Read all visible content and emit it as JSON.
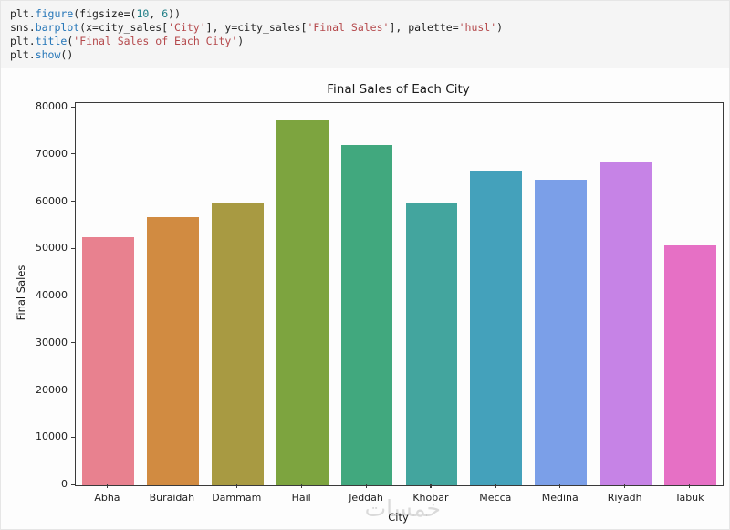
{
  "colors": {
    "plain": "#1f1f1f",
    "func": "#2576b8",
    "number": "#1b7c84",
    "string": "#b5494c",
    "code_bg": "#f5f5f5"
  },
  "code_cell": {
    "lines": [
      {
        "tokens": [
          {
            "text": "plt.",
            "style": "plain"
          },
          {
            "text": "figure",
            "style": "func"
          },
          {
            "text": "(figsize=(",
            "style": "plain"
          },
          {
            "text": "10",
            "style": "number"
          },
          {
            "text": ", ",
            "style": "plain"
          },
          {
            "text": "6",
            "style": "number"
          },
          {
            "text": "))",
            "style": "plain"
          }
        ]
      },
      {
        "tokens": [
          {
            "text": "sns.",
            "style": "plain"
          },
          {
            "text": "barplot",
            "style": "func"
          },
          {
            "text": "(x=city_sales[",
            "style": "plain"
          },
          {
            "text": "'City'",
            "style": "string"
          },
          {
            "text": "], y=city_sales[",
            "style": "plain"
          },
          {
            "text": "'Final Sales'",
            "style": "string"
          },
          {
            "text": "], palette=",
            "style": "plain"
          },
          {
            "text": "'husl'",
            "style": "string"
          },
          {
            "text": ")",
            "style": "plain"
          }
        ]
      },
      {
        "tokens": [
          {
            "text": "plt.",
            "style": "plain"
          },
          {
            "text": "title",
            "style": "func"
          },
          {
            "text": "(",
            "style": "plain"
          },
          {
            "text": "'Final Sales of Each City'",
            "style": "string"
          },
          {
            "text": ")",
            "style": "plain"
          }
        ]
      },
      {
        "tokens": [
          {
            "text": "plt.",
            "style": "plain"
          },
          {
            "text": "show",
            "style": "func"
          },
          {
            "text": "()",
            "style": "plain"
          }
        ]
      }
    ]
  },
  "chart_data": {
    "type": "bar",
    "title": "Final Sales of Each City",
    "xlabel": "City",
    "ylabel": "Final Sales",
    "categories": [
      "Abha",
      "Buraidah",
      "Dammam",
      "Hail",
      "Jeddah",
      "Khobar",
      "Mecca",
      "Medina",
      "Riyadh",
      "Tabuk"
    ],
    "values": [
      52600,
      56900,
      60000,
      77300,
      72100,
      60000,
      66500,
      64700,
      68500,
      50900
    ],
    "bar_colors": [
      "#e8818f",
      "#d18b41",
      "#a89a42",
      "#7da43f",
      "#41a87e",
      "#43a59e",
      "#44a1bb",
      "#7b9fe8",
      "#c683e6",
      "#e670c5"
    ],
    "palette_name": "husl",
    "ylim": [
      0,
      80000
    ],
    "yticks": [
      0,
      10000,
      20000,
      30000,
      40000,
      50000,
      60000,
      70000,
      80000
    ],
    "ytick_labels": [
      "0",
      "10000",
      "20000",
      "30000",
      "40000",
      "50000",
      "60000",
      "70000",
      "80000"
    ],
    "grid": false,
    "legend": null
  },
  "watermark": {
    "text": "خمسات"
  }
}
